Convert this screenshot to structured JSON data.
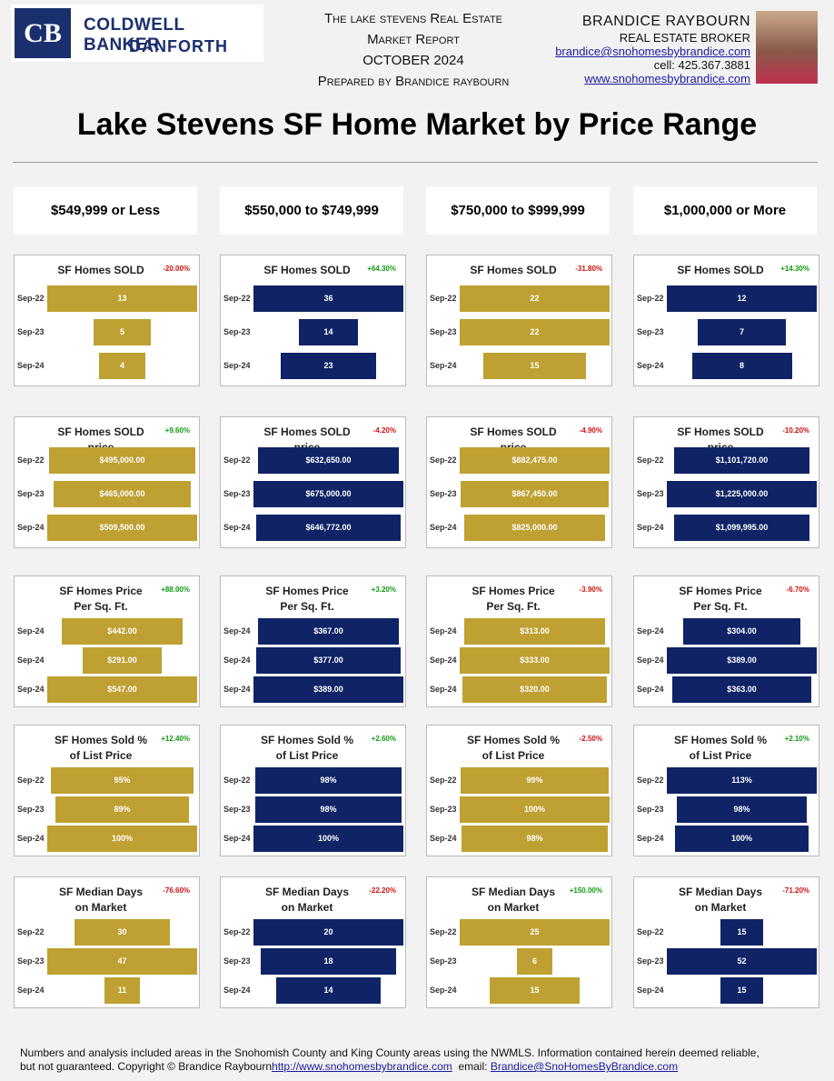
{
  "header": {
    "logo_line1": "COLDWELL BANKER",
    "logo_line2": "DANFORTH",
    "report_lines": [
      "The lake stevens Real Estate",
      "Market Report",
      "OCTOBER 2024",
      "Prepared by Brandice raybourn"
    ],
    "agent_name": "BRANDICE RAYBOURN",
    "agent_role": "REAL ESTATE BROKER",
    "agent_email": "brandice@snohomesbybrandice.com",
    "agent_cell": "cell: 425.367.3881",
    "agent_website": "www.snohomesbybrandice.com"
  },
  "title": "Lake Stevens SF Home Market by Price Range",
  "column_headers": [
    "$549,999 or Less",
    "$550,000 to $749,999",
    "$750,000 to $999,999",
    "$1,000,000 or More"
  ],
  "footer": {
    "line1": "Numbers and analysis included areas in the Snohomish County and King County areas using the NWMLS.  Information contained herein deemed reliable,",
    "line2": "but not guaranteed. Copyright © Brandice Raybourn",
    "link1": "http://www.snohomesbybrandice.com",
    "email_label": "email:",
    "link2": "Brandice@SnoHomesByBrandice.com"
  },
  "chart_data": [
    {
      "type": "funnel",
      "title": "SF Homes SOLD",
      "annotation": "-20.00%",
      "color": "#bfa032",
      "categories": [
        "Sep-22",
        "Sep-23",
        "Sep-24"
      ],
      "values": [
        13,
        5,
        4
      ]
    },
    {
      "type": "funnel",
      "title": "SF Homes SOLD",
      "annotation": "+64.30%",
      "color": "#0f2366",
      "categories": [
        "Sep-22",
        "Sep-23",
        "Sep-24"
      ],
      "values": [
        36,
        14,
        23
      ]
    },
    {
      "type": "funnel",
      "title": "SF Homes SOLD",
      "annotation": "-31.80%",
      "color": "#bfa032",
      "categories": [
        "Sep-22",
        "Sep-23",
        "Sep-24"
      ],
      "values": [
        22,
        22,
        15
      ]
    },
    {
      "type": "funnel",
      "title": "SF Homes SOLD",
      "annotation": "+14.30%",
      "color": "#0f2366",
      "categories": [
        "Sep-22",
        "Sep-23",
        "Sep-24"
      ],
      "values": [
        12,
        7,
        8
      ]
    },
    {
      "type": "funnel",
      "title": "SF Homes SOLD price",
      "annotation": "+9.60%",
      "color": "#bfa032",
      "categories": [
        "Sep-22",
        "Sep-23",
        "Sep-24"
      ],
      "values": [
        495000,
        465000,
        509500
      ],
      "value_labels": [
        "$495,000.00",
        "$465,000.00",
        "$509,500.00"
      ]
    },
    {
      "type": "funnel",
      "title": "SF Homes SOLD price",
      "annotation": "-4.20%",
      "color": "#0f2366",
      "categories": [
        "Sep-22",
        "Sep-23",
        "Sep-24"
      ],
      "values": [
        632650,
        675000,
        646772
      ],
      "value_labels": [
        "$632,650.00",
        "$675,000.00",
        "$646,772.00"
      ]
    },
    {
      "type": "funnel",
      "title": "SF Homes SOLD price",
      "annotation": "-4.90%",
      "color": "#bfa032",
      "categories": [
        "Sep-22",
        "Sep-23",
        "Sep-24"
      ],
      "values": [
        882475,
        867450,
        825000
      ],
      "value_labels": [
        "$882,475.00",
        "$867,450.00",
        "$825,000.00"
      ]
    },
    {
      "type": "funnel",
      "title": "SF Homes SOLD price",
      "annotation": "-10.20%",
      "color": "#0f2366",
      "categories": [
        "Sep-22",
        "Sep-23",
        "Sep-24"
      ],
      "values": [
        1101720,
        1225000,
        1099995
      ],
      "value_labels": [
        "$1,101,720.00",
        "$1,225,000.00",
        "$1,099,995.00"
      ]
    },
    {
      "type": "funnel",
      "title": "SF Homes Price Per Sq. Ft.",
      "annotation": "+88.00%",
      "color": "#bfa032",
      "categories": [
        "Sep-24",
        "Sep-24",
        "Sep-24"
      ],
      "values": [
        442,
        291,
        547
      ],
      "value_labels": [
        "$442.00",
        "$291.00",
        "$547.00"
      ]
    },
    {
      "type": "funnel",
      "title": "SF Homes Price Per Sq. Ft.",
      "annotation": "+3.20%",
      "color": "#0f2366",
      "categories": [
        "Sep-24",
        "Sep-24",
        "Sep-24"
      ],
      "values": [
        367,
        377,
        389
      ],
      "value_labels": [
        "$367.00",
        "$377.00",
        "$389.00"
      ]
    },
    {
      "type": "funnel",
      "title": "SF Homes Price Per Sq. Ft.",
      "annotation": "-3.90%",
      "color": "#bfa032",
      "categories": [
        "Sep-24",
        "Sep-24",
        "Sep-24"
      ],
      "values": [
        313,
        333,
        320
      ],
      "value_labels": [
        "$313.00",
        "$333.00",
        "$320.00"
      ]
    },
    {
      "type": "funnel",
      "title": "SF Homes Price Per Sq. Ft.",
      "annotation": "-6.70%",
      "color": "#0f2366",
      "categories": [
        "Sep-24",
        "Sep-24",
        "Sep-24"
      ],
      "values": [
        304,
        389,
        363
      ],
      "value_labels": [
        "$304.00",
        "$389.00",
        "$363.00"
      ]
    },
    {
      "type": "funnel",
      "title": "SF Homes Sold % of List Price",
      "annotation": "+12.40%",
      "color": "#bfa032",
      "categories": [
        "Sep-22",
        "Sep-23",
        "Sep-24"
      ],
      "values": [
        95,
        89,
        100
      ],
      "value_labels": [
        "95%",
        "89%",
        "100%"
      ]
    },
    {
      "type": "funnel",
      "title": "SF Homes Sold % of List Price",
      "annotation": "+2.60%",
      "color": "#0f2366",
      "categories": [
        "Sep-22",
        "Sep-23",
        "Sep-24"
      ],
      "values": [
        98,
        98,
        100
      ],
      "value_labels": [
        "98%",
        "98%",
        "100%"
      ]
    },
    {
      "type": "funnel",
      "title": "SF Homes Sold % of List Price",
      "annotation": "-2.50%",
      "color": "#bfa032",
      "categories": [
        "Sep-22",
        "Sep-23",
        "Sep-24"
      ],
      "values": [
        99,
        100,
        98
      ],
      "value_labels": [
        "99%",
        "100%",
        "98%"
      ]
    },
    {
      "type": "funnel",
      "title": "SF Homes Sold % of List Price",
      "annotation": "+2.10%",
      "color": "#0f2366",
      "categories": [
        "Sep-22",
        "Sep-23",
        "Sep-24"
      ],
      "values": [
        113,
        98,
        100
      ],
      "value_labels": [
        "113%",
        "98%",
        "100%"
      ]
    },
    {
      "type": "funnel",
      "title": "SF Median Days on Market",
      "annotation": "-76.60%",
      "color": "#bfa032",
      "categories": [
        "Sep-22",
        "Sep-23",
        "Sep-24"
      ],
      "values": [
        30,
        47,
        11
      ]
    },
    {
      "type": "funnel",
      "title": "SF Median Days on Market",
      "annotation": "-22.20%",
      "color": "#0f2366",
      "categories": [
        "Sep-22",
        "Sep-23",
        "Sep-24"
      ],
      "values": [
        20,
        18,
        14
      ]
    },
    {
      "type": "funnel",
      "title": "SF Median Days on Market",
      "annotation": "+150.00%",
      "color": "#bfa032",
      "categories": [
        "Sep-22",
        "Sep-23",
        "Sep-24"
      ],
      "values": [
        25,
        6,
        15
      ]
    },
    {
      "type": "funnel",
      "title": "SF Median Days on Market",
      "annotation": "-71.20%",
      "color": "#0f2366",
      "categories": [
        "Sep-22",
        "Sep-23",
        "Sep-24"
      ],
      "values": [
        15,
        52,
        15
      ]
    }
  ]
}
